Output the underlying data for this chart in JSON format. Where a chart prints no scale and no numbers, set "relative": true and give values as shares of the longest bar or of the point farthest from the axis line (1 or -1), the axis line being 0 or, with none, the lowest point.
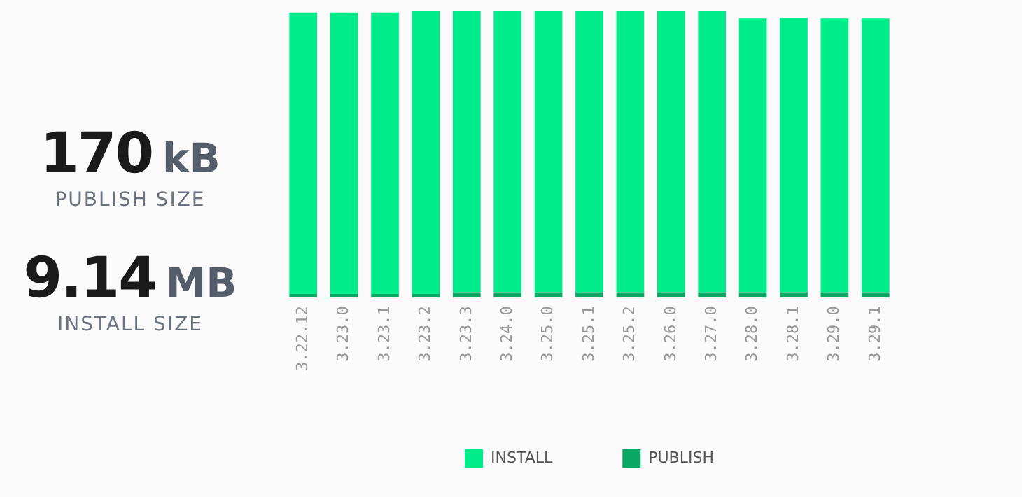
{
  "chart_data": {
    "type": "bar",
    "stacked": true,
    "relative": true,
    "legend": "bottom",
    "grid": false,
    "categories": [
      "3.22.12",
      "3.23.0",
      "3.23.1",
      "3.23.2",
      "3.23.3",
      "3.24.0",
      "3.25.0",
      "3.25.1",
      "3.25.2",
      "3.26.0",
      "3.27.0",
      "3.28.0",
      "3.28.1",
      "3.29.0",
      "3.29.1"
    ],
    "series": [
      {
        "name": "PUBLISH",
        "color": "#0aa865",
        "values": [
          0.013,
          0.013,
          0.013,
          0.013,
          0.019,
          0.019,
          0.019,
          0.019,
          0.019,
          0.019,
          0.019,
          0.019,
          0.019,
          0.019,
          0.019
        ]
      },
      {
        "name": "INSTALL",
        "color": "#00eb8a",
        "values": [
          0.983,
          0.983,
          0.983,
          0.987,
          0.981,
          0.981,
          0.981,
          0.981,
          0.981,
          0.981,
          0.981,
          0.956,
          0.958,
          0.956,
          0.956
        ]
      }
    ],
    "annotations": [
      "170 kB",
      "PUBLISH SIZE",
      "9.14 MB",
      "INSTALL SIZE"
    ]
  }
}
